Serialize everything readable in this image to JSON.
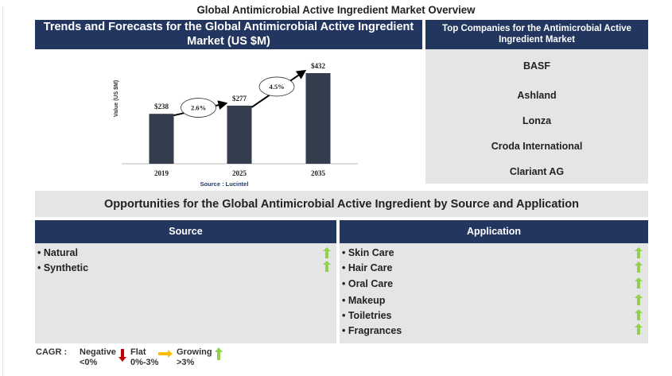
{
  "page": {
    "title": "Global Antimicrobial Active Ingredient Market Overview"
  },
  "trends": {
    "header": "Trends and Forecasts for the Global Antimicrobial Active Ingredient Market (US $M)"
  },
  "chart_data": {
    "type": "bar",
    "title": "Trends and Forecasts for the Global Antimicrobial Active Ingredient Market (US $M)",
    "xlabel": "",
    "ylabel": "Value (US $M)",
    "categories": [
      "2019",
      "2025",
      "2035"
    ],
    "values": [
      238,
      277,
      432
    ],
    "value_labels": [
      "$238",
      "$277",
      "$432"
    ],
    "cagr_annotations": [
      {
        "from": "2019",
        "to": "2025",
        "label": "2.6%"
      },
      {
        "from": "2025",
        "to": "2035",
        "label": "4.5%"
      }
    ],
    "source": "Source : Lucintel",
    "ylim": [
      0,
      432
    ],
    "grid": false,
    "bar_color": "#333d4d"
  },
  "companies": {
    "header": "Top Companies for the Antimicrobial Active Ingredient Market",
    "items": [
      "BASF",
      "Ashland",
      "Lonza",
      "Croda International",
      "Clariant AG"
    ]
  },
  "opportunities": {
    "title": "Opportunities for the Global Antimicrobial Active Ingredient by Source and Application",
    "source": {
      "header": "Source",
      "items": [
        {
          "label": "• Natural",
          "trend": "growing"
        },
        {
          "label": "• Synthetic",
          "trend": "growing"
        }
      ]
    },
    "application": {
      "header": "Application",
      "items": [
        {
          "label": "• Skin Care",
          "trend": "growing"
        },
        {
          "label": "• Hair Care",
          "trend": "growing"
        },
        {
          "label": "• Oral Care",
          "trend": "growing"
        },
        {
          "label": "• Makeup",
          "trend": "growing"
        },
        {
          "label": "• Toiletries",
          "trend": "growing"
        },
        {
          "label": "• Fragrances",
          "trend": "growing"
        }
      ]
    }
  },
  "legend": {
    "label": "CAGR :",
    "negative": {
      "name": "Negative",
      "range": "<0%",
      "icon": "arrow-down-icon",
      "color": "#c00000"
    },
    "flat": {
      "name": "Flat",
      "range": "0%-3%",
      "icon": "arrow-right-icon",
      "color": "#ffc000"
    },
    "growing": {
      "name": "Growing",
      "range": ">3%",
      "icon": "arrow-up-icon",
      "color": "#92d050"
    }
  },
  "colors": {
    "header_bg": "#22365f",
    "panel_bg": "#e5e5e5",
    "growing": "#92d050"
  }
}
